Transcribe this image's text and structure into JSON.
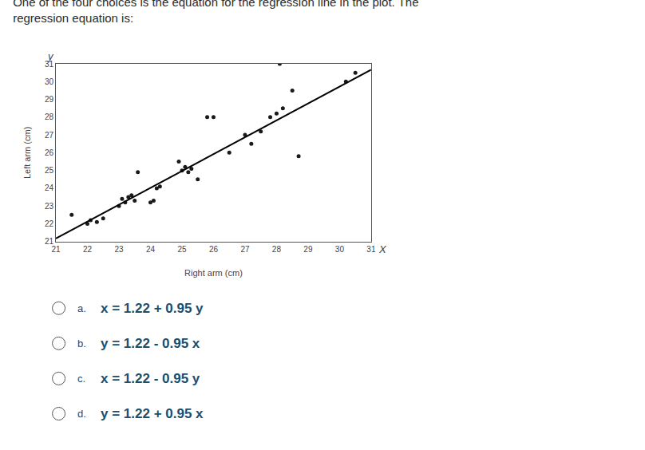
{
  "chart_data": {
    "type": "scatter",
    "title": "One of the four choices is the equation for the regression line in the plot. The",
    "subtitle": "regression equation is:",
    "xlabel": "Right arm (cm)",
    "ylabel": "Left arm (cm)",
    "series": [
      {
        "type": "scatter",
        "marker": "circle",
        "color": "#1a1a1a",
        "x": [
          21.5,
          22.0,
          22.1,
          22.3,
          22.5,
          23.0,
          23.1,
          23.2,
          23.3,
          23.4,
          23.5,
          23.6,
          24.0,
          24.1,
          24.2,
          24.3,
          24.9,
          25.0,
          25.1,
          25.2,
          25.3,
          25.5,
          25.8,
          26.0,
          26.5,
          27.0,
          27.2,
          27.5,
          27.8,
          28.0,
          28.1,
          28.2,
          28.5,
          28.7,
          30.2,
          30.5
        ],
        "values": [
          22.5,
          22.0,
          22.2,
          22.1,
          22.3,
          23.0,
          23.4,
          23.2,
          23.5,
          23.6,
          23.3,
          24.9,
          23.2,
          23.3,
          24.0,
          24.1,
          25.5,
          25.0,
          25.2,
          24.9,
          25.1,
          24.5,
          28.0,
          28.0,
          26.0,
          27.0,
          26.5,
          27.2,
          28.0,
          28.2,
          31.0,
          28.5,
          29.5,
          25.8,
          30.0,
          30.5
        ]
      },
      {
        "type": "line",
        "line_style": "solid",
        "color": "#000000",
        "x": [
          21,
          31
        ],
        "values": [
          21.17,
          30.67
        ]
      }
    ],
    "xlim": [
      21,
      31
    ],
    "ylim": [
      21,
      31
    ],
    "xticks": [
      21,
      22,
      23,
      24,
      25,
      26,
      27,
      28,
      29,
      30,
      31
    ],
    "yticks": [
      21,
      22,
      23,
      24,
      25,
      26,
      27,
      28,
      29,
      30,
      31
    ],
    "grid": false,
    "legend": false,
    "annotations": [
      "X",
      "y"
    ],
    "choices": [
      {
        "label": "a.",
        "text": "x = 1.22 + 0.95 y"
      },
      {
        "label": "b.",
        "text": "y = 1.22 - 0.95 x"
      },
      {
        "label": "c.",
        "text": "x = 1.22 - 0.95 y"
      },
      {
        "label": "d.",
        "text": "y = 1.22 + 0.95 x"
      }
    ]
  }
}
